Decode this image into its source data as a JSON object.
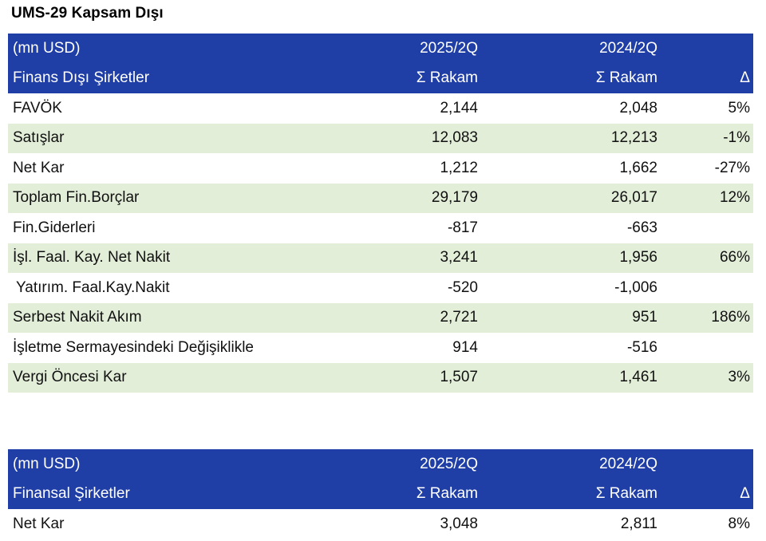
{
  "title": "UMS-29 Kapsam Dışı",
  "table1": {
    "header_unit": "(mn USD)",
    "header_period_a": "2025/2Q",
    "header_period_b": "2024/2Q",
    "header_section": "Finans Dışı Şirketler",
    "header_sum_a": "Σ Rakam",
    "header_sum_b": "Σ Rakam",
    "header_delta": "Δ",
    "rows": [
      {
        "label": "FAVÖK",
        "a": "2,144",
        "b": "2,048",
        "d": "5%"
      },
      {
        "label": "Satışlar",
        "a": "12,083",
        "b": "12,213",
        "d": "-1%"
      },
      {
        "label": "Net Kar",
        "a": "1,212",
        "b": "1,662",
        "d": "-27%"
      },
      {
        "label": "Toplam Fin.Borçlar",
        "a": "29,179",
        "b": "26,017",
        "d": "12%"
      },
      {
        "label": "Fin.Giderleri",
        "a": "-817",
        "b": "-663",
        "d": ""
      },
      {
        "label": "İşl. Faal. Kay. Net Nakit",
        "a": "3,241",
        "b": "1,956",
        "d": "66%"
      },
      {
        "label": "Yatırım. Faal.Kay.Nakit",
        "a": "-520",
        "b": "-1,006",
        "d": ""
      },
      {
        "label": "Serbest Nakit Akım",
        "a": "2,721",
        "b": "951",
        "d": "186%"
      },
      {
        "label": "İşletme Sermayesindeki Değişiklikle",
        "a": "914",
        "b": "-516",
        "d": ""
      },
      {
        "label": "Vergi Öncesi Kar",
        "a": "1,507",
        "b": "1,461",
        "d": "3%"
      }
    ]
  },
  "table2": {
    "header_unit": "(mn USD)",
    "header_period_a": "2025/2Q",
    "header_period_b": "2024/2Q",
    "header_section": "Finansal Şirketler",
    "header_sum_a": "Σ Rakam",
    "header_sum_b": "Σ Rakam",
    "header_delta": "Δ",
    "rows": [
      {
        "label": "Net Kar",
        "a": "3,048",
        "b": "2,811",
        "d": "8%"
      }
    ]
  }
}
